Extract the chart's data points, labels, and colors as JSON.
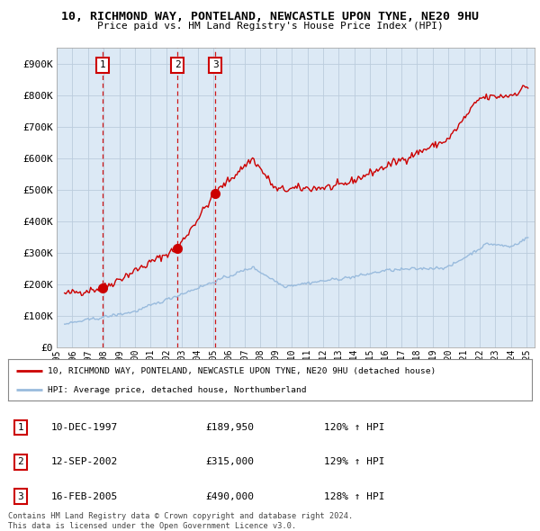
{
  "title_line1": "10, RICHMOND WAY, PONTELAND, NEWCASTLE UPON TYNE, NE20 9HU",
  "title_line2": "Price paid vs. HM Land Registry's House Price Index (HPI)",
  "legend_label_red": "10, RICHMOND WAY, PONTELAND, NEWCASTLE UPON TYNE, NE20 9HU (detached house)",
  "legend_label_blue": "HPI: Average price, detached house, Northumberland",
  "footnote": "Contains HM Land Registry data © Crown copyright and database right 2024.\nThis data is licensed under the Open Government Licence v3.0.",
  "sale_markers": [
    {
      "num": 1,
      "date": "10-DEC-1997",
      "price": 189950,
      "pct": "120%",
      "year": 1997.94
    },
    {
      "num": 2,
      "date": "12-SEP-2002",
      "price": 315000,
      "pct": "129%",
      "year": 2002.7
    },
    {
      "num": 3,
      "date": "16-FEB-2005",
      "price": 490000,
      "pct": "128%",
      "year": 2005.12
    }
  ],
  "ylim": [
    0,
    950000
  ],
  "xlim": [
    1995.0,
    2025.5
  ],
  "yticks": [
    0,
    100000,
    200000,
    300000,
    400000,
    500000,
    600000,
    700000,
    800000,
    900000
  ],
  "ytick_labels": [
    "£0",
    "£100K",
    "£200K",
    "£300K",
    "£400K",
    "£500K",
    "£600K",
    "£700K",
    "£800K",
    "£900K"
  ],
  "xtick_years": [
    1995,
    1996,
    1997,
    1998,
    1999,
    2000,
    2001,
    2002,
    2003,
    2004,
    2005,
    2006,
    2007,
    2008,
    2009,
    2010,
    2011,
    2012,
    2013,
    2014,
    2015,
    2016,
    2017,
    2018,
    2019,
    2020,
    2021,
    2022,
    2023,
    2024,
    2025
  ],
  "red_color": "#cc0000",
  "blue_color": "#99bbdd",
  "grid_color": "#bbccdd",
  "plot_bg_color": "#dce9f5",
  "fig_bg_color": "#ffffff",
  "marker_box_color": "#cc0000"
}
